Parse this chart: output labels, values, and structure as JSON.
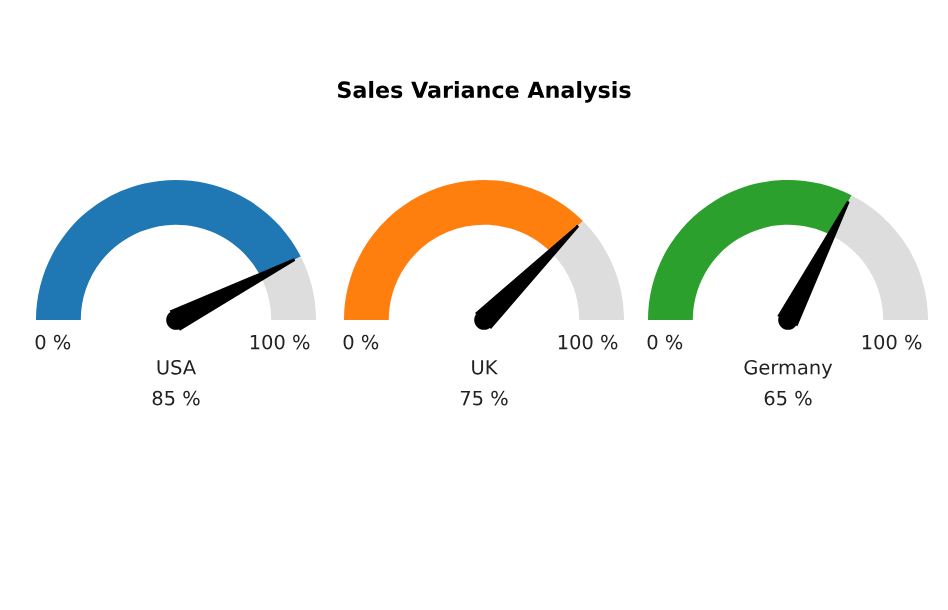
{
  "chart_data": [
    {
      "type": "donut",
      "xlabel": "USA",
      "categories": [
        null,
        null
      ],
      "values": [
        85,
        15
      ],
      "colors": [
        "#1f77b4",
        "#dddddd"
      ],
      "annotations": [
        "0 %",
        "100 %",
        "85 %"
      ]
    },
    {
      "type": "donut",
      "title": "Sales Variance Analysis",
      "xlabel": "UK",
      "categories": [
        null,
        null
      ],
      "values": [
        75,
        25
      ],
      "colors": [
        "#ff7f0e",
        "#dddddd"
      ],
      "annotations": [
        "0 %",
        "100 %",
        "75 %"
      ]
    },
    {
      "type": "donut",
      "xlabel": "Germany",
      "categories": [
        null,
        null
      ],
      "values": [
        65,
        35
      ],
      "colors": [
        "#2ca02c",
        "#dddddd"
      ],
      "annotations": [
        "0 %",
        "100 %",
        "65 %"
      ]
    }
  ]
}
